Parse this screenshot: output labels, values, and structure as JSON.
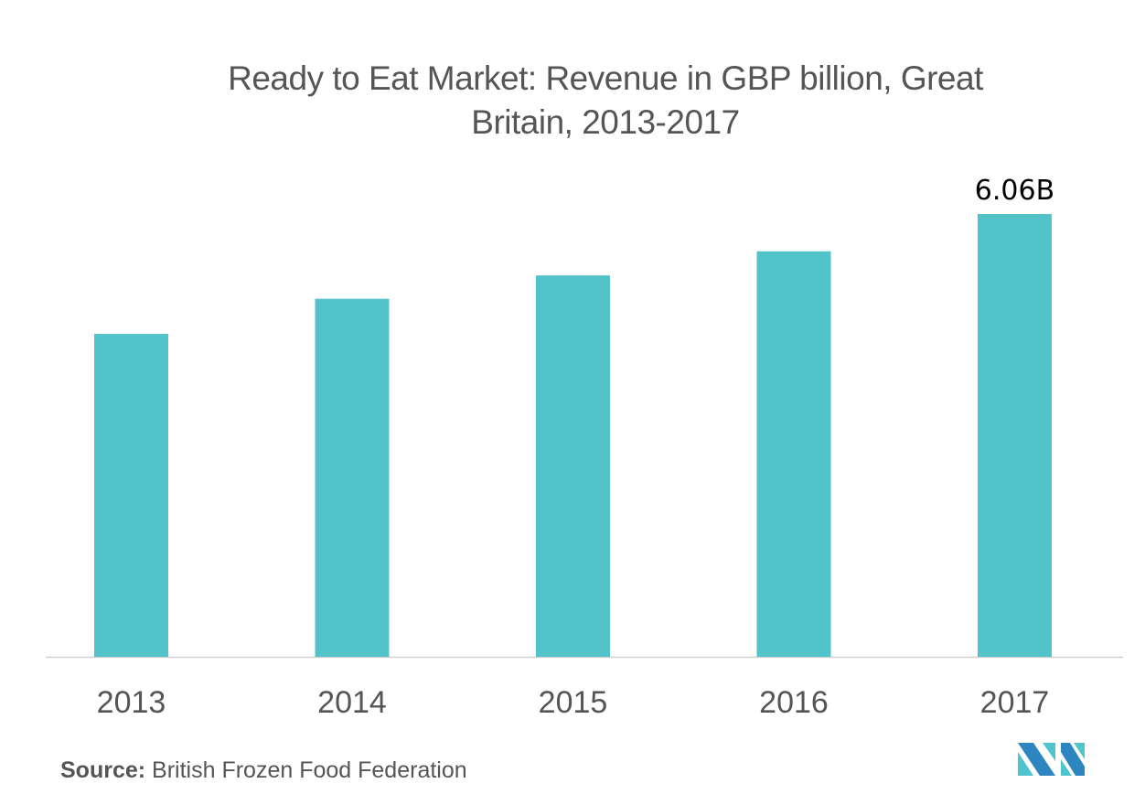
{
  "chart_data": {
    "type": "bar",
    "title": "Ready to Eat Market:  Revenue in GBP billion, Great Britain, 2013-2017",
    "title_lines": [
      "Ready to Eat Market:  Revenue in GBP billion, Great",
      "Britain, 2013-2017"
    ],
    "categories": [
      "2013",
      "2014",
      "2015",
      "2016",
      "2017"
    ],
    "values": [
      4.42,
      4.9,
      5.22,
      5.55,
      6.06
    ],
    "data_labels": [
      "",
      "",
      "",
      "",
      "6.06B"
    ],
    "xlabel": "",
    "ylabel": "",
    "ylim": [
      0,
      6.06
    ],
    "grid": false,
    "bar_color": "#52C3C9"
  },
  "source": {
    "label": "Source:",
    "text": "British Frozen Food Federation"
  },
  "logo": {
    "colors": [
      "#2E86C1",
      "#4FC4CC"
    ]
  }
}
